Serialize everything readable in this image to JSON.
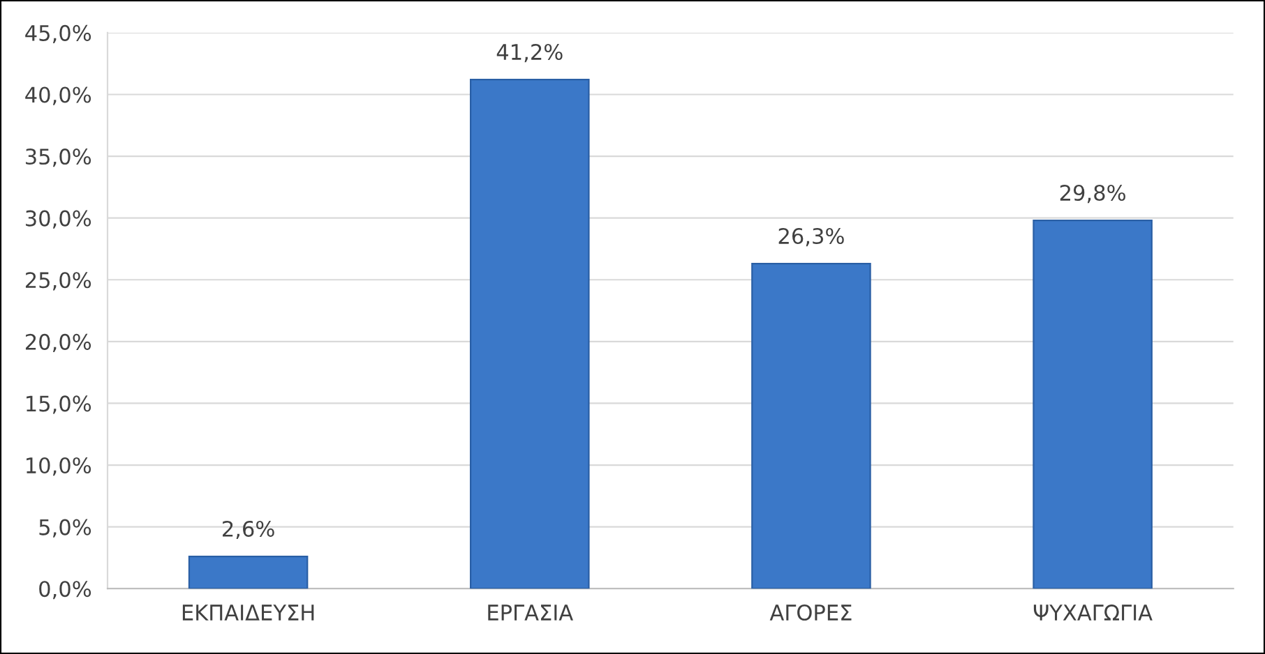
{
  "chart_data": {
    "type": "bar",
    "categories": [
      "ΕΚΠΑΙΔΕΥΣΗ",
      "ΕΡΓΑΣΙΑ",
      "ΑΓΟΡΕΣ",
      "ΨΥΧΑΓΩΓΙΑ"
    ],
    "values": [
      2.6,
      41.2,
      26.3,
      29.8
    ],
    "value_labels": [
      "2,6%",
      "41,2%",
      "26,3%",
      "29,8%"
    ],
    "color": "#3b78c8",
    "ylim": [
      0,
      45
    ],
    "yticks": [
      {
        "value": 0,
        "label": "0,0%"
      },
      {
        "value": 5,
        "label": "5,0%"
      },
      {
        "value": 10,
        "label": "10,0%"
      },
      {
        "value": 15,
        "label": "15,0%"
      },
      {
        "value": 20,
        "label": "20,0%"
      },
      {
        "value": 25,
        "label": "25,0%"
      },
      {
        "value": 30,
        "label": "30,0%"
      },
      {
        "value": 35,
        "label": "35,0%"
      },
      {
        "value": 40,
        "label": "40,0%"
      },
      {
        "value": 45,
        "label": "45,0%"
      }
    ],
    "grid": "y",
    "legend": false
  }
}
